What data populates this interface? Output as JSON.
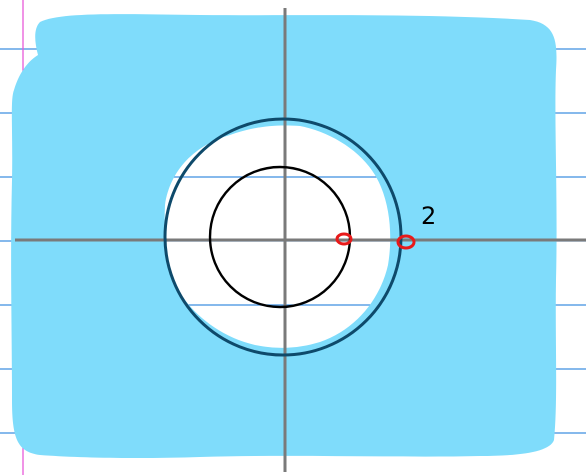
{
  "diagram": {
    "point_label": "2"
  },
  "colors": {
    "page": "#ffffff",
    "ruled_line": "#3d8fe0",
    "margin_line": "#e85ad8",
    "shading": "#7fdcfb",
    "axis": "#7a7a7a",
    "outer_circle": "#0e4a6b",
    "inner_circle": "#000000",
    "point_marker": "#e81a1a"
  }
}
